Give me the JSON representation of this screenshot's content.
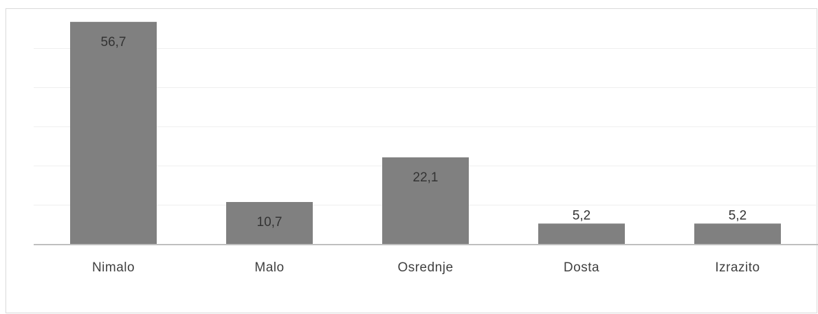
{
  "chart_data": {
    "type": "bar",
    "categories": [
      "Nimalo",
      "Malo",
      "Osrednje",
      "Dosta",
      "Izrazito"
    ],
    "values": [
      56.7,
      10.7,
      22.1,
      5.2,
      5.2
    ],
    "value_labels": [
      "56,7",
      "10,7",
      "22,1",
      "5,2",
      "5,2"
    ],
    "title": "",
    "xlabel": "",
    "ylabel": "",
    "ylim": [
      0,
      60
    ],
    "gridlines": [
      10,
      20,
      30,
      40,
      50
    ],
    "grid": true,
    "legend": "none",
    "bar_color": "#808080",
    "gridline_color": "#efefef",
    "axis_color": "#bfbfbf"
  }
}
